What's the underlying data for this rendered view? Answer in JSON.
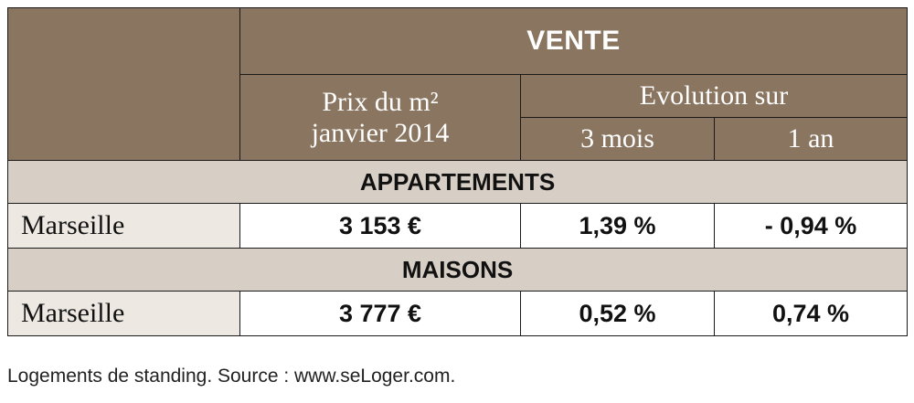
{
  "header": {
    "vente": "VENTE",
    "prix_line1": "Prix du m²",
    "prix_line2": "janvier 2014",
    "evolution": "Evolution sur",
    "col_3mois": "3 mois",
    "col_1an": "1 an"
  },
  "sections": [
    {
      "title": "APPARTEMENTS",
      "rows": [
        {
          "city": "Marseille",
          "prix": "3 153 €",
          "evo_3mois": "1,39 %",
          "evo_1an": "- 0,94 %"
        }
      ]
    },
    {
      "title": "MAISONS",
      "rows": [
        {
          "city": "Marseille",
          "prix": "3 777 €",
          "evo_3mois": "0,52 %",
          "evo_1an": "0,74 %"
        }
      ]
    }
  ],
  "footnote": "Logements de standing. Source : www.seLoger.com.",
  "colors": {
    "header_bg": "#8a7560",
    "section_bg": "#d7cec5",
    "label_bg": "#ede8e2",
    "border": "#1a1a1a"
  }
}
